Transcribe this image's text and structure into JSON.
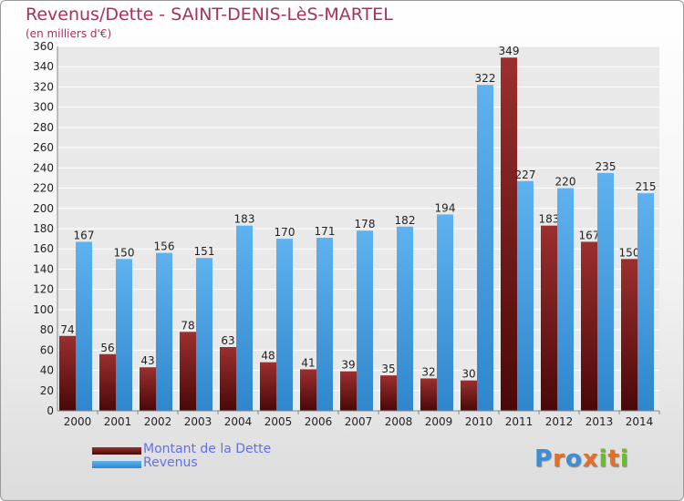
{
  "chart_data": {
    "type": "bar",
    "title": "Revenus/Dette - SAINT-DENIS-LèS-MARTEL",
    "subtitle": "(en milliers d'€)",
    "categories": [
      "2000",
      "2001",
      "2002",
      "2003",
      "2004",
      "2005",
      "2006",
      "2007",
      "2008",
      "2009",
      "2010",
      "2011",
      "2012",
      "2013",
      "2014"
    ],
    "series": [
      {
        "name": "Montant de la Dette",
        "color": "#7a1c1c",
        "values": [
          74,
          56,
          43,
          78,
          63,
          48,
          41,
          39,
          35,
          32,
          30,
          349,
          183,
          167,
          150
        ]
      },
      {
        "name": "Revenus",
        "color": "#4da6e8",
        "values": [
          167,
          150,
          156,
          151,
          183,
          170,
          171,
          178,
          182,
          194,
          322,
          227,
          220,
          235,
          215
        ]
      }
    ],
    "ylim": [
      0,
      360
    ],
    "ytick_step": 20,
    "grid": true,
    "legend_position": "bottom-left"
  },
  "logo": {
    "text": "Proxiti"
  }
}
